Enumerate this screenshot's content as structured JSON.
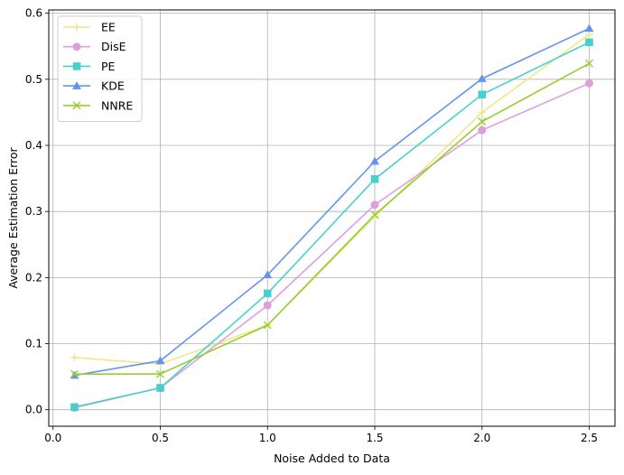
{
  "chart_data": {
    "type": "line",
    "title": "",
    "xlabel": "Noise Added to Data",
    "ylabel": "Average Estimation Error",
    "x": [
      0.1,
      0.5,
      1.0,
      1.5,
      2.0,
      2.5
    ],
    "xlim": [
      -0.02,
      2.62
    ],
    "ylim": [
      -0.025,
      0.605
    ],
    "xticks": [
      0.0,
      0.5,
      1.0,
      1.5,
      2.0,
      2.5
    ],
    "xtick_labels": [
      "0.0",
      "0.5",
      "1.0",
      "1.5",
      "2.0",
      "2.5"
    ],
    "yticks": [
      0.0,
      0.1,
      0.2,
      0.3,
      0.4,
      0.5,
      0.6
    ],
    "ytick_labels": [
      "0.0",
      "0.1",
      "0.2",
      "0.3",
      "0.4",
      "0.5",
      "0.6"
    ],
    "grid": true,
    "legend_position": "upper-left",
    "series": [
      {
        "name": "EE",
        "color": "#f0e68c",
        "marker": "plus",
        "values": [
          0.079,
          0.069,
          0.128,
          0.292,
          0.45,
          0.568
        ]
      },
      {
        "name": "DisE",
        "color": "#dda0dd",
        "marker": "circle",
        "values": [
          0.003,
          0.033,
          0.158,
          0.31,
          0.423,
          0.494
        ]
      },
      {
        "name": "PE",
        "color": "#48d1cc",
        "marker": "square",
        "values": [
          0.004,
          0.033,
          0.176,
          0.349,
          0.477,
          0.556
        ]
      },
      {
        "name": "KDE",
        "color": "#6495ed",
        "marker": "triangle",
        "values": [
          0.052,
          0.074,
          0.204,
          0.376,
          0.501,
          0.577
        ]
      },
      {
        "name": "NNRE",
        "color": "#9acd32",
        "marker": "x",
        "values": [
          0.054,
          0.054,
          0.128,
          0.295,
          0.436,
          0.524
        ]
      }
    ]
  }
}
